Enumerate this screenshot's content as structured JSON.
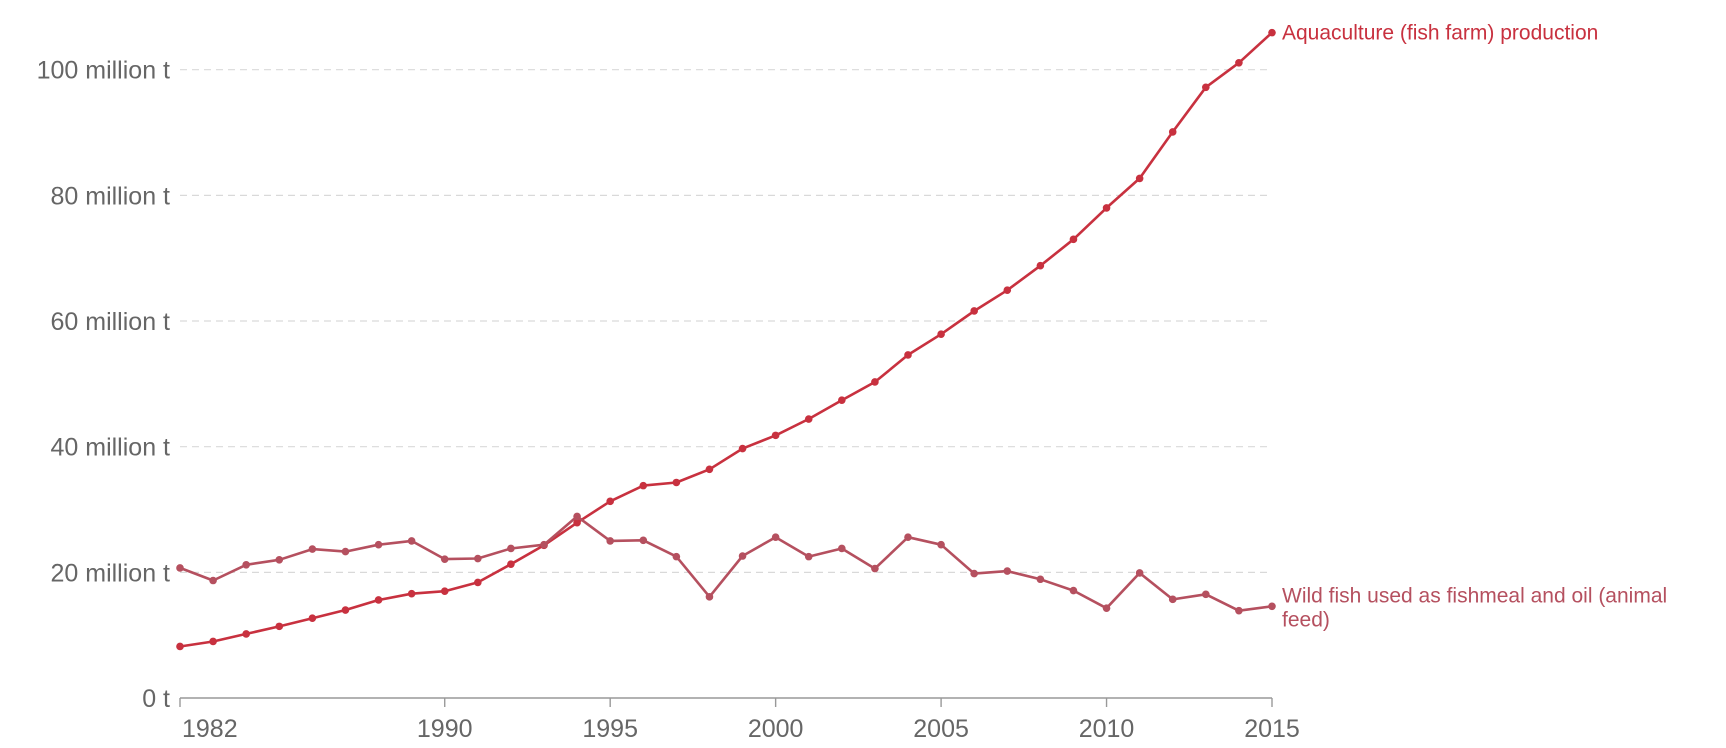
{
  "chart_data": {
    "type": "line",
    "title": "",
    "xlabel": "",
    "ylabel": "",
    "xlim": [
      1982,
      2015
    ],
    "ylim": [
      0,
      106
    ],
    "grid": true,
    "y_ticks": [
      {
        "value": 0,
        "label": "0 t"
      },
      {
        "value": 20,
        "label": "20 million t"
      },
      {
        "value": 40,
        "label": "40 million t"
      },
      {
        "value": 60,
        "label": "60 million t"
      },
      {
        "value": 80,
        "label": "80 million t"
      },
      {
        "value": 100,
        "label": "100 million t"
      }
    ],
    "x_ticks": [
      {
        "value": 1982,
        "label": "1982"
      },
      {
        "value": 1990,
        "label": "1990"
      },
      {
        "value": 1995,
        "label": "1995"
      },
      {
        "value": 2000,
        "label": "2000"
      },
      {
        "value": 2005,
        "label": "2005"
      },
      {
        "value": 2010,
        "label": "2010"
      },
      {
        "value": 2015,
        "label": "2015"
      }
    ],
    "x": [
      1982,
      1983,
      1984,
      1985,
      1986,
      1987,
      1988,
      1989,
      1990,
      1991,
      1992,
      1993,
      1994,
      1995,
      1996,
      1997,
      1998,
      1999,
      2000,
      2001,
      2002,
      2003,
      2004,
      2005,
      2006,
      2007,
      2008,
      2009,
      2010,
      2011,
      2012,
      2013,
      2014,
      2015
    ],
    "series": [
      {
        "name": "Aquaculture (fish farm) production",
        "color": "#c8313f",
        "values": [
          8.2,
          9.0,
          10.2,
          11.4,
          12.7,
          14.0,
          15.6,
          16.6,
          17.0,
          18.4,
          21.3,
          24.3,
          27.9,
          31.3,
          33.8,
          34.3,
          36.4,
          39.7,
          41.8,
          44.4,
          47.4,
          50.3,
          54.6,
          57.9,
          61.6,
          64.9,
          68.8,
          73.0,
          78.0,
          82.7,
          90.1,
          97.2,
          101.1,
          105.9
        ]
      },
      {
        "name": "Wild fish used as fishmeal and oil (animal feed)",
        "color": "#b5505f",
        "values": [
          20.7,
          18.7,
          21.2,
          22.0,
          23.7,
          23.3,
          24.4,
          25.0,
          22.1,
          22.2,
          23.8,
          24.4,
          28.9,
          25.0,
          25.1,
          22.5,
          16.1,
          22.6,
          25.6,
          22.5,
          23.8,
          20.6,
          25.6,
          24.4,
          19.8,
          20.2,
          18.9,
          17.1,
          14.3,
          19.9,
          15.7,
          16.5,
          13.9,
          14.6
        ]
      }
    ]
  }
}
